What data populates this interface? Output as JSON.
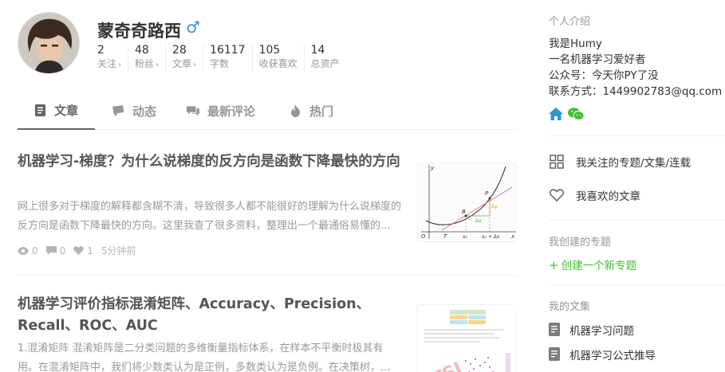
{
  "profile": {
    "name": "蒙奇奇路西",
    "gender_symbol": "♂",
    "stats": [
      {
        "num": "2",
        "label": "关注",
        "arrow": "›"
      },
      {
        "num": "48",
        "label": "粉丝",
        "arrow": "›"
      },
      {
        "num": "28",
        "label": "文章",
        "arrow": "›"
      },
      {
        "num": "16117",
        "label": "字数",
        "arrow": ""
      },
      {
        "num": "105",
        "label": "收获喜欢",
        "arrow": ""
      },
      {
        "num": "14",
        "label": "总资产",
        "arrow": ""
      }
    ]
  },
  "tabs": [
    {
      "label": "文章",
      "icon": "article-icon",
      "active": true
    },
    {
      "label": "动态",
      "icon": "activity-icon",
      "active": false
    },
    {
      "label": "最新评论",
      "icon": "comment-icon",
      "active": false
    },
    {
      "label": "热门",
      "icon": "fire-icon",
      "active": false
    }
  ],
  "articles": [
    {
      "title": "机器学习-梯度？为什么说梯度的反方向是函数下降最快的方向",
      "abstract": "网上很多对于梯度的解释都含糊不清，导致很多人都不能很好的理解为什么说梯度的反方向是函数下降最快的方向。这里我查了很多资料，整理出一个最通俗易懂的...",
      "views": "0",
      "comments": "0",
      "likes": "1",
      "time": "5分钟前",
      "thumb_labels": {
        "y": "y",
        "o": "O",
        "t": "T",
        "x": "x",
        "x0": "x₀",
        "x0dx": "x₀ + Δx",
        "p": "P",
        "b": "B",
        "dx": "Δx",
        "dy": "Δy"
      }
    },
    {
      "title": "机器学习评价指标混淆矩阵、Accuracy、Precision、Recall、ROC、AUC",
      "abstract": "1.混淆矩阵 混淆矩阵是二分类问题的多维衡量指标体系，在样本不平衡时极其有用。在混淆矩阵中，我们将少数类认为是正例，多数类认为是负例。在决策树，..."
    }
  ],
  "sidebar": {
    "intro_title": "个人介绍",
    "intro_lines": [
      "我是Humy",
      "一名机器学习爱好者",
      "公众号：今天你PY了没",
      "联系方式：1449902783@qq.com"
    ],
    "followed_label": "我关注的专题/文集/连载",
    "liked_label": "我喜欢的文章",
    "created_title": "我创建的专题",
    "create_label": "创建一个新专题",
    "collections_title": "我的文集",
    "collections": [
      "机器学习问题",
      "机器学习公式推导"
    ]
  },
  "colors": {
    "accent_green": "#42c02e",
    "male_blue": "#3194d0",
    "home_blue": "#3194d0",
    "wechat_green": "#42c02e"
  }
}
